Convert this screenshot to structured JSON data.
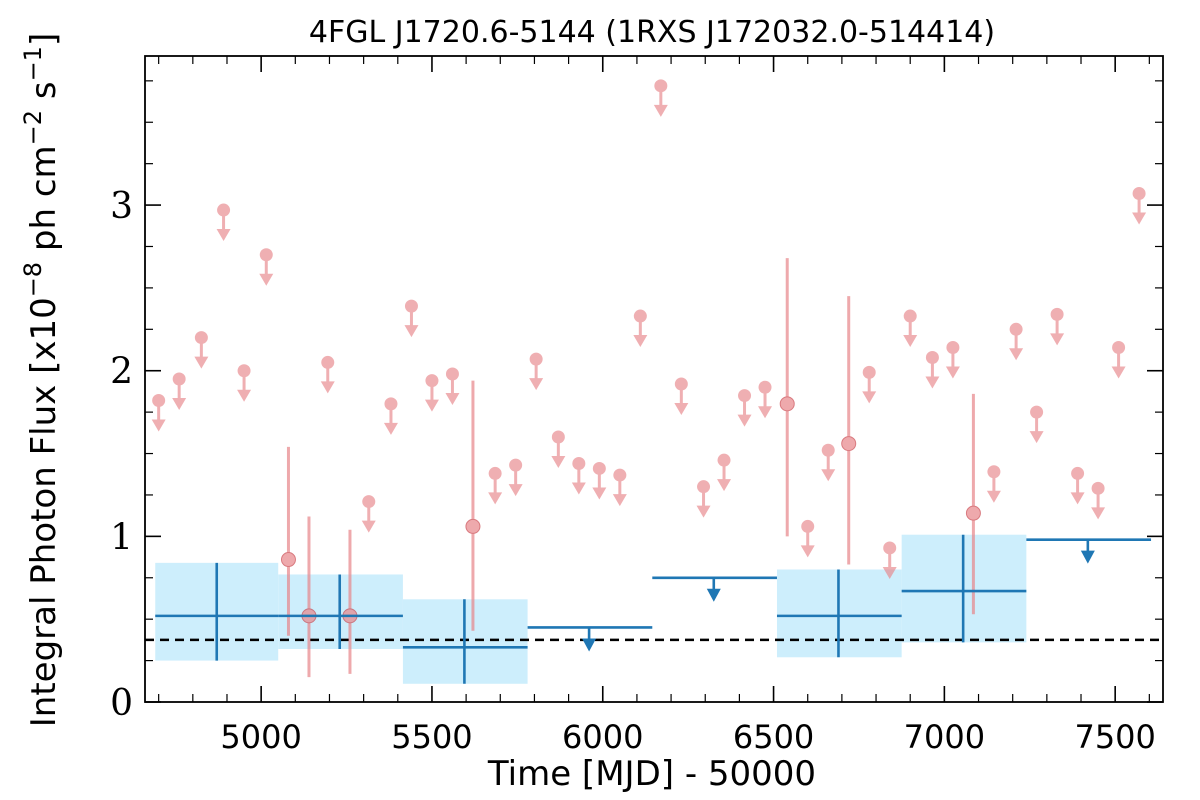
{
  "chart_data": {
    "type": "scatter",
    "title": "4FGL J1720.6-5144 (1RXS J172032.0-514414)",
    "xlabel": "Time [MJD] - 50000",
    "ylabel": "Integral Photon Flux [x10^-8 ph cm^-2 s^-1]",
    "ylabel_parts": {
      "main": "Integral Photon Flux [x10",
      "exp1": "−8",
      "mid": " ph cm",
      "exp2": "−2",
      "mid2": " s",
      "exp3": "−1",
      "end": "]"
    },
    "xlim": [
      4660,
      7640
    ],
    "ylim": [
      0,
      3.9
    ],
    "x_ticks": [
      5000,
      5500,
      6000,
      6500,
      7000,
      7500
    ],
    "x_tick_labels": [
      "5000",
      "5500",
      "6000",
      "6500",
      "7000",
      "7500"
    ],
    "y_ticks": [
      0,
      1,
      2,
      3
    ],
    "y_tick_labels": [
      "0",
      "1",
      "2",
      "3"
    ],
    "colors": {
      "monthly": "#e8858a",
      "yearly": "#1f77b4",
      "yearly_band": "#cdeefc",
      "average": "#000000"
    },
    "average_flux": 0.375,
    "monthly_upper_limits": [
      {
        "x": 4700,
        "y": 1.82
      },
      {
        "x": 4760,
        "y": 1.95
      },
      {
        "x": 4825,
        "y": 2.2
      },
      {
        "x": 4890,
        "y": 2.97
      },
      {
        "x": 4950,
        "y": 2.0
      },
      {
        "x": 5015,
        "y": 2.7
      },
      {
        "x": 5195,
        "y": 2.05
      },
      {
        "x": 5315,
        "y": 1.21
      },
      {
        "x": 5380,
        "y": 1.8
      },
      {
        "x": 5440,
        "y": 2.39
      },
      {
        "x": 5500,
        "y": 1.94
      },
      {
        "x": 5560,
        "y": 1.98
      },
      {
        "x": 5685,
        "y": 1.38
      },
      {
        "x": 5745,
        "y": 1.43
      },
      {
        "x": 5805,
        "y": 2.07
      },
      {
        "x": 5870,
        "y": 1.6
      },
      {
        "x": 5930,
        "y": 1.44
      },
      {
        "x": 5990,
        "y": 1.41
      },
      {
        "x": 6050,
        "y": 1.37
      },
      {
        "x": 6110,
        "y": 2.33
      },
      {
        "x": 6170,
        "y": 3.72
      },
      {
        "x": 6230,
        "y": 1.92
      },
      {
        "x": 6295,
        "y": 1.3
      },
      {
        "x": 6355,
        "y": 1.46
      },
      {
        "x": 6415,
        "y": 1.85
      },
      {
        "x": 6475,
        "y": 1.9
      },
      {
        "x": 6600,
        "y": 1.06
      },
      {
        "x": 6660,
        "y": 1.52
      },
      {
        "x": 6780,
        "y": 1.99
      },
      {
        "x": 6840,
        "y": 0.93
      },
      {
        "x": 6900,
        "y": 2.33
      },
      {
        "x": 6965,
        "y": 2.08
      },
      {
        "x": 7025,
        "y": 2.14
      },
      {
        "x": 7145,
        "y": 1.39
      },
      {
        "x": 7210,
        "y": 2.25
      },
      {
        "x": 7270,
        "y": 1.75
      },
      {
        "x": 7330,
        "y": 2.34
      },
      {
        "x": 7390,
        "y": 1.38
      },
      {
        "x": 7450,
        "y": 1.29
      },
      {
        "x": 7510,
        "y": 2.14
      },
      {
        "x": 7570,
        "y": 3.07
      }
    ],
    "monthly_detections": [
      {
        "x": 5080,
        "y": 0.86,
        "ylo": 0.4,
        "yhi": 1.54
      },
      {
        "x": 5140,
        "y": 0.52,
        "ylo": 0.15,
        "yhi": 1.12
      },
      {
        "x": 5260,
        "y": 0.52,
        "ylo": 0.17,
        "yhi": 1.04
      },
      {
        "x": 5620,
        "y": 1.06,
        "ylo": 0.43,
        "yhi": 1.94
      },
      {
        "x": 6540,
        "y": 1.8,
        "ylo": 1.0,
        "yhi": 2.68
      },
      {
        "x": 6720,
        "y": 1.56,
        "ylo": 0.83,
        "yhi": 2.45
      },
      {
        "x": 7085,
        "y": 1.14,
        "ylo": 0.53,
        "yhi": 1.86
      }
    ],
    "yearly_detections": [
      {
        "x": 4870,
        "xlo": 4690,
        "xhi": 5050,
        "y": 0.52,
        "ylo": 0.25,
        "yhi": 0.84
      },
      {
        "x": 5230,
        "xlo": 5050,
        "xhi": 5415,
        "y": 0.52,
        "ylo": 0.32,
        "yhi": 0.77
      },
      {
        "x": 5595,
        "xlo": 5415,
        "xhi": 5780,
        "y": 0.33,
        "ylo": 0.11,
        "yhi": 0.62
      },
      {
        "x": 6690,
        "xlo": 6510,
        "xhi": 6875,
        "y": 0.52,
        "ylo": 0.27,
        "yhi": 0.8
      },
      {
        "x": 7055,
        "xlo": 6875,
        "xhi": 7240,
        "y": 0.67,
        "ylo": 0.36,
        "yhi": 1.01
      }
    ],
    "yearly_upper_limits": [
      {
        "x": 5960,
        "xlo": 5780,
        "xhi": 6145,
        "y": 0.45
      },
      {
        "x": 6325,
        "xlo": 6145,
        "xhi": 6510,
        "y": 0.75
      },
      {
        "x": 7420,
        "xlo": 7240,
        "xhi": 7605,
        "y": 0.98
      }
    ]
  }
}
